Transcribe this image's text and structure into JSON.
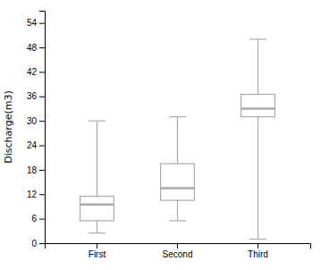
{
  "chart_data": {
    "type": "box",
    "categories": [
      "First",
      "Second",
      "Third"
    ],
    "box_stats": [
      {
        "whislo": 2.5,
        "q1": 5.5,
        "med": 9.5,
        "q3": 11.5,
        "whishi": 30.0
      },
      {
        "whislo": 5.5,
        "q1": 10.5,
        "med": 13.5,
        "q3": 19.5,
        "whishi": 31.0
      },
      {
        "whislo": 1.0,
        "q1": 31.0,
        "med": 33.0,
        "q3": 36.5,
        "whishi": 50.0
      }
    ],
    "ylabel": "Discharge(m3)",
    "ylim": [
      0,
      57
    ],
    "yticks": [
      0,
      6,
      12,
      18,
      24,
      30,
      36,
      42,
      48,
      54
    ],
    "color": "#aaaaaa",
    "grid": false
  }
}
